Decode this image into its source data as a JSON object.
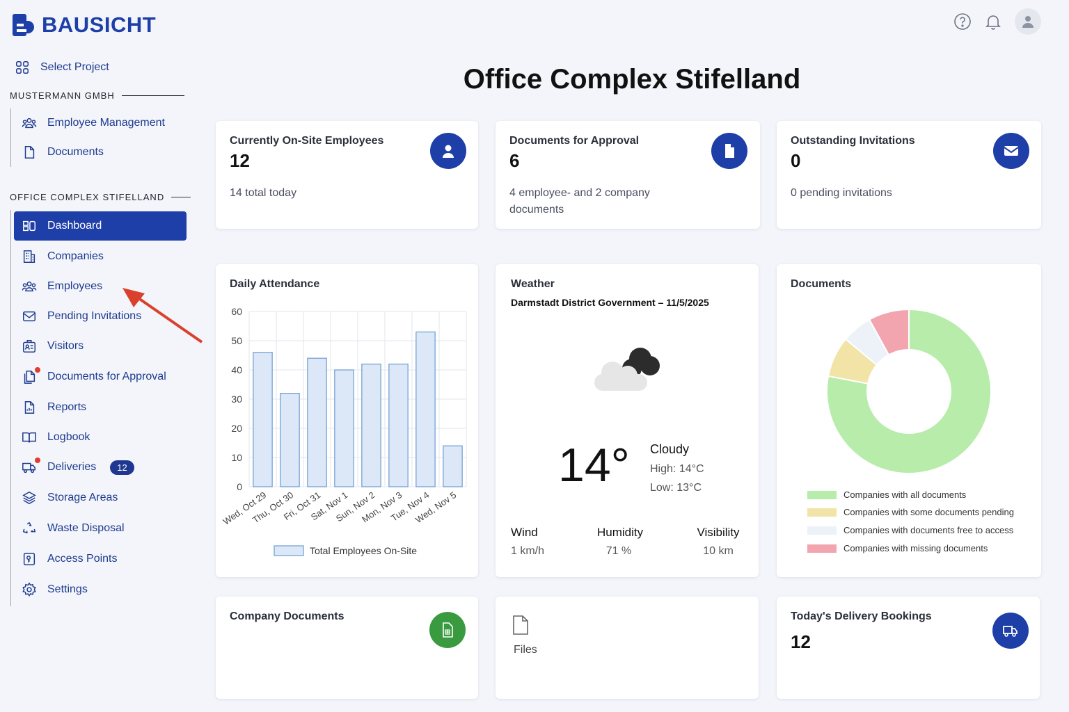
{
  "brand": {
    "name": "BAUSICHT"
  },
  "sidebar": {
    "select_project": "Select Project",
    "section1": "MUSTERMANN GMBH",
    "section1_items": [
      {
        "label": "Employee Management",
        "icon": "people-icon"
      },
      {
        "label": "Documents",
        "icon": "document-icon"
      }
    ],
    "section2": "OFFICE COMPLEX STIFELLAND",
    "items": [
      {
        "label": "Dashboard",
        "icon": "dashboard-icon",
        "active": true
      },
      {
        "label": "Companies",
        "icon": "building-icon"
      },
      {
        "label": "Employees",
        "icon": "people-icon"
      },
      {
        "label": "Pending Invitations",
        "icon": "envelope-icon"
      },
      {
        "label": "Visitors",
        "icon": "id-card-icon"
      },
      {
        "label": "Documents for Approval",
        "icon": "documents-icon",
        "dot": true
      },
      {
        "label": "Reports",
        "icon": "report-icon"
      },
      {
        "label": "Logbook",
        "icon": "book-icon"
      },
      {
        "label": "Deliveries",
        "icon": "truck-icon",
        "dot": true,
        "badge": "12"
      },
      {
        "label": "Storage Areas",
        "icon": "layers-icon"
      },
      {
        "label": "Waste Disposal",
        "icon": "recycle-icon"
      },
      {
        "label": "Access Points",
        "icon": "key-icon"
      },
      {
        "label": "Settings",
        "icon": "gear-icon"
      }
    ]
  },
  "header": {
    "title": "Office Complex Stifelland"
  },
  "stats": {
    "onsite": {
      "title": "Currently On-Site Employees",
      "value": "12",
      "sub": "14 total today"
    },
    "approval": {
      "title": "Documents for Approval",
      "value": "6",
      "sub": "4 employee- and 2 company documents"
    },
    "invites": {
      "title": "Outstanding Invitations",
      "value": "0",
      "sub": "0 pending invitations"
    }
  },
  "attendance": {
    "title": "Daily Attendance"
  },
  "weather": {
    "title": "Weather",
    "location": "Darmstadt District Government – 11/5/2025",
    "temp": "14°",
    "condition": "Cloudy",
    "high": "High: 14°C",
    "low": "Low: 13°C",
    "wind_label": "Wind",
    "wind": "1 km/h",
    "humidity_label": "Humidity",
    "humidity": "71 %",
    "visibility_label": "Visibility",
    "visibility": "10 km"
  },
  "documents": {
    "title": "Documents"
  },
  "company_docs": {
    "title": "Company Documents"
  },
  "files": {
    "label": "Files"
  },
  "delivery": {
    "title": "Today's Delivery Bookings",
    "value": "12"
  },
  "colors": {
    "primary": "#1e3ea8",
    "green_btn": "#3a9a3f",
    "alert": "#e23b2c"
  },
  "chart_data": [
    {
      "type": "bar",
      "title": "Daily Attendance",
      "categories": [
        "Wed, Oct 29",
        "Thu, Oct 30",
        "Fri, Oct 31",
        "Sat, Nov 1",
        "Sun, Nov 2",
        "Mon, Nov 3",
        "Tue, Nov 4",
        "Wed, Nov 5"
      ],
      "series": [
        {
          "name": "Total Employees On-Site",
          "values": [
            46,
            32,
            44,
            40,
            42,
            42,
            53,
            14
          ]
        }
      ],
      "ylim": [
        0,
        60
      ],
      "yticks": [
        0,
        10,
        20,
        30,
        40,
        50,
        60
      ],
      "grid": true,
      "legend": "bottom",
      "color": "#dce8f7",
      "edge": "#6c9bd2"
    },
    {
      "type": "pie",
      "title": "Documents",
      "donut": true,
      "slices": [
        {
          "name": "Companies with all documents",
          "value": 78,
          "color": "#b8ecaa"
        },
        {
          "name": "Companies with some documents pending",
          "value": 8,
          "color": "#f1e4a6"
        },
        {
          "name": "Companies with documents free to access",
          "value": 6,
          "color": "#edf2f9"
        },
        {
          "name": "Companies with missing documents",
          "value": 8,
          "color": "#f2a5ae"
        }
      ],
      "legend": "bottom"
    }
  ]
}
